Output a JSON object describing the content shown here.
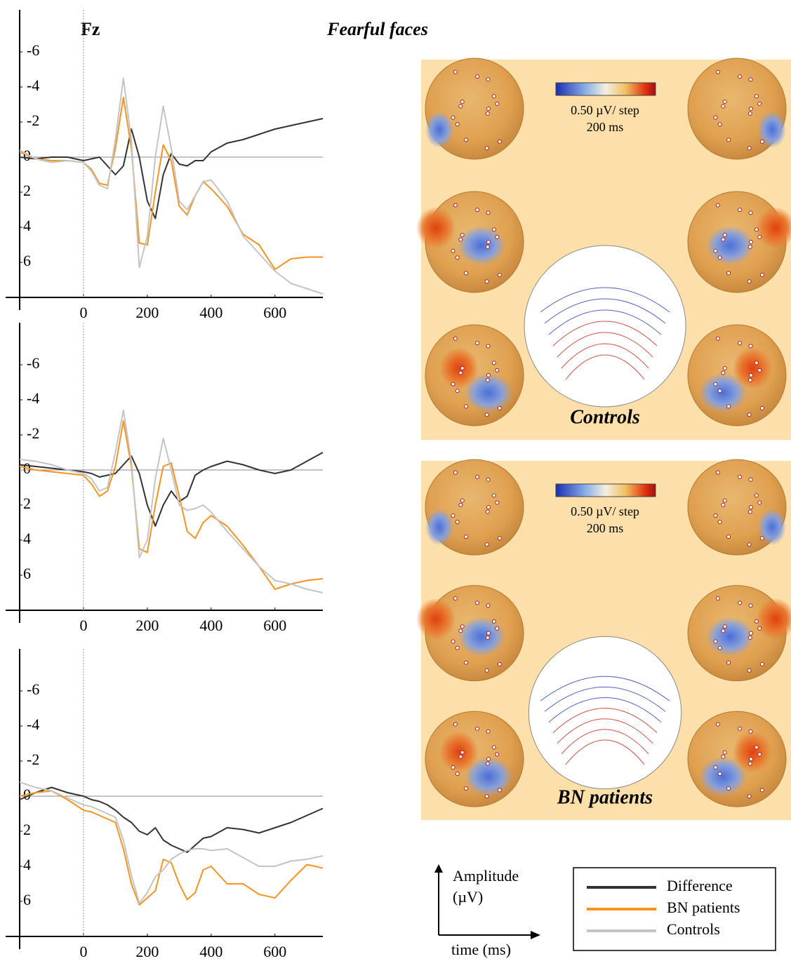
{
  "chart_data": [
    {
      "type": "line",
      "label": "Fz",
      "title": "Fearful faces",
      "x": [
        -200,
        -150,
        -100,
        -50,
        0,
        25,
        50,
        75,
        100,
        125,
        150,
        175,
        200,
        225,
        250,
        275,
        300,
        325,
        350,
        375,
        400,
        450,
        500,
        550,
        600,
        650,
        700,
        750
      ],
      "xlim": [
        -200,
        750
      ],
      "xticks": [
        0,
        200,
        400,
        600
      ],
      "ylim": [
        -8,
        8
      ],
      "yticks": [
        -6,
        -4,
        -2,
        0,
        2,
        4,
        6
      ],
      "y_inverted": true,
      "zero_line": true,
      "series": [
        {
          "name": "Difference",
          "color": "#333333",
          "values": [
            0.0,
            0.1,
            0.0,
            0.0,
            0.2,
            0.1,
            0.0,
            0.5,
            1.0,
            0.5,
            -1.6,
            0.0,
            2.5,
            3.5,
            1.0,
            -0.2,
            0.4,
            0.5,
            0.2,
            0.2,
            -0.3,
            -0.8,
            -1.0,
            -1.3,
            -1.6,
            -1.8,
            -2.0,
            -2.2
          ]
        },
        {
          "name": "BN patients",
          "color": "#f7931e",
          "values": [
            -0.3,
            0.1,
            0.2,
            0.2,
            0.3,
            0.7,
            1.5,
            1.6,
            -0.5,
            -3.4,
            -0.5,
            4.9,
            5.0,
            2.0,
            -0.7,
            0.2,
            2.8,
            3.3,
            2.2,
            1.4,
            1.8,
            2.8,
            4.4,
            5.0,
            6.4,
            5.8,
            5.7,
            5.7
          ]
        },
        {
          "name": "Controls",
          "color": "#c4c4c4",
          "values": [
            -0.4,
            0.1,
            0.3,
            0.2,
            0.3,
            0.8,
            1.6,
            1.8,
            -1.0,
            -4.5,
            -1.0,
            6.3,
            4.5,
            0.0,
            -2.9,
            -0.5,
            2.5,
            3.0,
            2.2,
            1.4,
            1.3,
            2.5,
            4.5,
            5.5,
            6.5,
            7.2,
            7.5,
            7.8
          ]
        }
      ]
    },
    {
      "type": "line",
      "x": [
        -200,
        -150,
        -100,
        -50,
        0,
        25,
        50,
        75,
        100,
        125,
        150,
        175,
        200,
        225,
        250,
        275,
        300,
        325,
        350,
        375,
        400,
        450,
        500,
        550,
        600,
        650,
        700,
        750
      ],
      "xlim": [
        -200,
        750
      ],
      "xticks": [
        0,
        200,
        400,
        600
      ],
      "ylim": [
        -8,
        8
      ],
      "yticks": [
        -6,
        -4,
        -2,
        0,
        2,
        4,
        6
      ],
      "y_inverted": true,
      "zero_line": true,
      "series": [
        {
          "color": "#333333",
          "values": [
            -0.3,
            -0.2,
            -0.1,
            0.0,
            0.1,
            0.2,
            0.4,
            0.3,
            0.2,
            -0.3,
            -0.8,
            0.2,
            2.0,
            3.2,
            2.0,
            1.2,
            1.8,
            1.5,
            0.3,
            0.0,
            -0.2,
            -0.5,
            -0.3,
            0.0,
            0.2,
            0.0,
            -0.5,
            -1.0
          ]
        },
        {
          "color": "#f7931e",
          "values": [
            -0.2,
            0.0,
            0.1,
            0.2,
            0.3,
            0.8,
            1.5,
            1.2,
            -0.2,
            -2.8,
            -0.2,
            4.5,
            4.7,
            2.0,
            -0.2,
            -0.4,
            1.5,
            3.5,
            3.9,
            3.0,
            2.6,
            3.2,
            4.3,
            5.5,
            6.8,
            6.5,
            6.3,
            6.2
          ]
        },
        {
          "color": "#c4c4c4",
          "values": [
            -0.6,
            -0.5,
            -0.3,
            0.0,
            0.2,
            0.5,
            1.2,
            1.0,
            -1.0,
            -3.4,
            -0.5,
            5.0,
            4.0,
            0.5,
            -1.8,
            0.0,
            2.0,
            2.3,
            2.2,
            2.0,
            2.4,
            3.5,
            4.5,
            5.5,
            6.3,
            6.5,
            6.8,
            7.0
          ]
        }
      ]
    },
    {
      "type": "line",
      "x": [
        -200,
        -150,
        -100,
        -50,
        0,
        25,
        50,
        75,
        100,
        125,
        150,
        175,
        200,
        225,
        250,
        275,
        300,
        325,
        350,
        375,
        400,
        450,
        500,
        550,
        600,
        650,
        700,
        750
      ],
      "xlim": [
        -200,
        750
      ],
      "xticks": [
        0,
        200,
        400,
        600
      ],
      "ylim": [
        -8,
        8
      ],
      "yticks": [
        -6,
        -4,
        -2,
        0,
        2,
        4,
        6
      ],
      "y_inverted": true,
      "zero_line": true,
      "series": [
        {
          "color": "#333333",
          "values": [
            0.2,
            -0.2,
            -0.5,
            -0.2,
            0.0,
            0.2,
            0.3,
            0.5,
            0.8,
            1.2,
            1.5,
            2.0,
            2.2,
            1.8,
            2.5,
            2.8,
            3.0,
            3.2,
            2.8,
            2.4,
            2.3,
            1.8,
            1.9,
            2.1,
            1.8,
            1.5,
            1.1,
            0.7
          ]
        },
        {
          "color": "#f7931e",
          "values": [
            0.0,
            -0.2,
            -0.3,
            0.2,
            0.8,
            0.9,
            1.1,
            1.3,
            1.5,
            3.0,
            5.0,
            6.2,
            5.8,
            5.4,
            3.6,
            3.8,
            5.0,
            5.9,
            5.5,
            4.2,
            4.0,
            5.0,
            5.0,
            5.6,
            5.8,
            4.8,
            3.9,
            4.1
          ]
        },
        {
          "color": "#c4c4c4",
          "values": [
            -0.8,
            -0.5,
            -0.3,
            0.1,
            0.5,
            0.6,
            0.8,
            1.0,
            1.2,
            2.5,
            4.5,
            6.1,
            5.5,
            4.6,
            4.2,
            3.6,
            3.3,
            3.1,
            3.0,
            3.0,
            3.1,
            3.0,
            3.5,
            4.0,
            4.0,
            3.7,
            3.6,
            3.4
          ]
        }
      ]
    }
  ],
  "topomaps": [
    {
      "label": "Controls",
      "scale": "0.50 µV/ step",
      "time": "200 ms"
    },
    {
      "label": "BN patients",
      "scale": "0.50 µV/ step",
      "time": "200 ms"
    }
  ],
  "axis_key": {
    "y_label": [
      "Amplitude",
      "(µV)"
    ],
    "x_label": "time (ms)"
  }
}
